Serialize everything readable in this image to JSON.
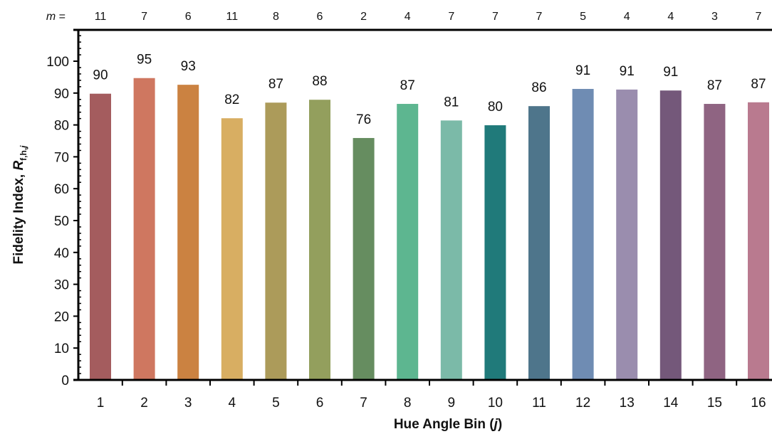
{
  "chart_data": {
    "type": "bar",
    "title": "",
    "xlabel": "Hue Angle Bin (",
    "xlabel_var": "j",
    "xlabel_close": ")",
    "ylabel": "Fidelity Index, ",
    "ylabel_var": "R",
    "ylabel_sub": "f,h,",
    "ylabel_sub_var": "j",
    "ylim": [
      0,
      100
    ],
    "yticks": [
      0,
      10,
      20,
      30,
      40,
      50,
      60,
      70,
      80,
      90,
      100
    ],
    "grid": false,
    "legend": "none",
    "categories": [
      "1",
      "2",
      "3",
      "4",
      "5",
      "6",
      "7",
      "8",
      "9",
      "10",
      "11",
      "12",
      "13",
      "14",
      "15",
      "16"
    ],
    "values": [
      89.8,
      94.7,
      92.6,
      82.1,
      87.0,
      87.9,
      75.9,
      86.6,
      81.4,
      79.9,
      85.9,
      91.3,
      91.1,
      90.8,
      86.6,
      87.1
    ],
    "data_labels": [
      "90",
      "95",
      "93",
      "82",
      "87",
      "88",
      "76",
      "87",
      "81",
      "80",
      "86",
      "91",
      "91",
      "91",
      "87",
      "87"
    ],
    "colors": [
      "#a45c5e",
      "#cf7760",
      "#cb8241",
      "#d8ae62",
      "#ac9b5a",
      "#939f5d",
      "#668d60",
      "#5db690",
      "#7bbaa8",
      "#207a7a",
      "#4e758b",
      "#6f8cb3",
      "#9a8dae",
      "#74587a",
      "#8f6482",
      "#b97a8f"
    ],
    "m_prefix": "m",
    "m_suffix": " =",
    "m_values": [
      "11",
      "7",
      "6",
      "11",
      "8",
      "6",
      "2",
      "4",
      "7",
      "7",
      "7",
      "5",
      "4",
      "4",
      "3",
      "7"
    ]
  }
}
